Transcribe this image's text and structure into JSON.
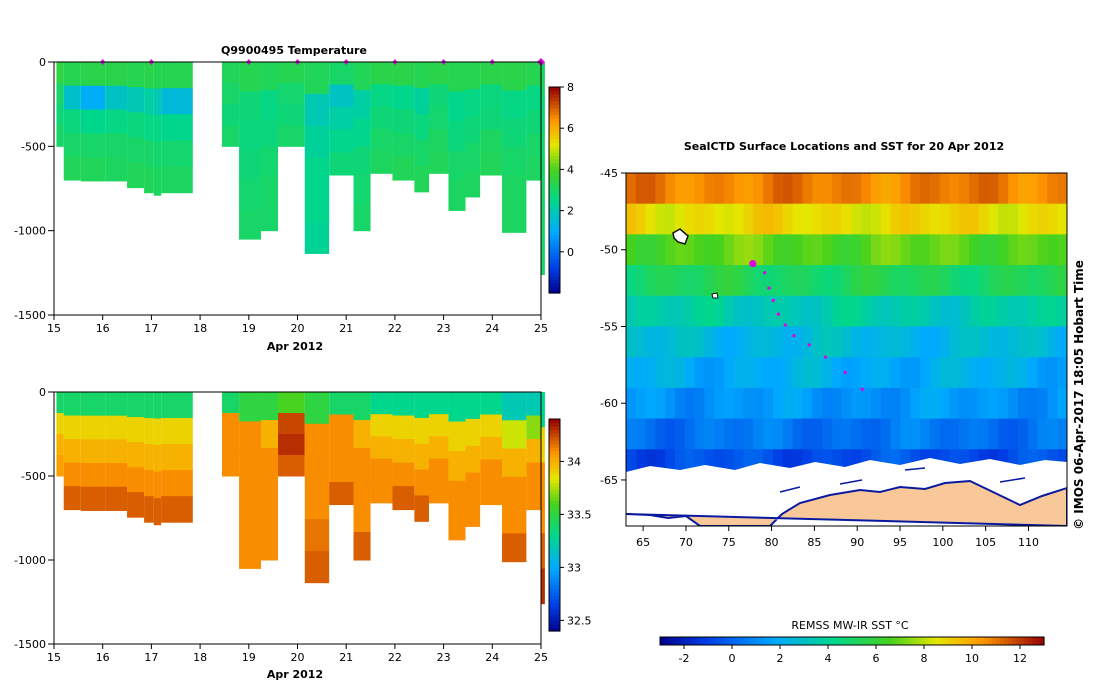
{
  "chart_data": [
    {
      "type": "heatmap",
      "title": "Q9900495  Temperature",
      "xlabel": "Apr 2012",
      "ylabel": "",
      "xlim": [
        15,
        25
      ],
      "ylim": [
        -1500,
        0
      ],
      "x_ticks": [
        "15",
        "16",
        "17",
        "18",
        "19",
        "20",
        "21",
        "22",
        "23",
        "24",
        "25"
      ],
      "y_ticks": [
        "0",
        "-500",
        "-1000",
        "-1500"
      ],
      "colorbar": {
        "min": -2,
        "max": 8,
        "ticks": [
          "0",
          "2",
          "4",
          "6",
          "8"
        ]
      },
      "surface_markers": [
        16,
        17,
        19,
        20,
        21,
        22,
        23,
        24,
        25
      ],
      "profiles": [
        {
          "x0": 15.05,
          "x1": 15.2,
          "depth": 500,
          "values": [
            3.5,
            3.0,
            2.8,
            3.0
          ]
        },
        {
          "x0": 15.2,
          "x1": 15.55,
          "depth": 700,
          "values": [
            3.3,
            1.7,
            2.7,
            3.0,
            3.2
          ]
        },
        {
          "x0": 15.55,
          "x1": 16.05,
          "depth": 705,
          "values": [
            3.4,
            1.1,
            2.5,
            3.0,
            3.2
          ]
        },
        {
          "x0": 16.05,
          "x1": 16.5,
          "depth": 705,
          "values": [
            3.4,
            1.8,
            2.6,
            3.0,
            3.1
          ]
        },
        {
          "x0": 16.5,
          "x1": 16.85,
          "depth": 745,
          "values": [
            3.3,
            2.0,
            2.7,
            3.0,
            3.2
          ]
        },
        {
          "x0": 16.85,
          "x1": 17.05,
          "depth": 775,
          "values": [
            3.4,
            2.2,
            2.6,
            3.0,
            3.2
          ]
        },
        {
          "x0": 17.05,
          "x1": 17.2,
          "depth": 790,
          "values": [
            3.3,
            2.0,
            2.6,
            2.9,
            3.1
          ]
        },
        {
          "x0": 17.2,
          "x1": 17.85,
          "depth": 775,
          "values": [
            3.3,
            1.5,
            2.5,
            2.9,
            3.1
          ]
        },
        {
          "x0": 18.45,
          "x1": 18.8,
          "depth": 500,
          "values": [
            3.2,
            3.0,
            2.8,
            3.0
          ]
        },
        {
          "x0": 18.8,
          "x1": 19.25,
          "depth": 1050,
          "values": [
            3.3,
            2.8,
            2.7,
            2.8,
            2.9,
            3.0
          ]
        },
        {
          "x0": 19.25,
          "x1": 19.6,
          "depth": 1000,
          "values": [
            3.2,
            2.6,
            2.7,
            2.9,
            3.0,
            3.0
          ]
        },
        {
          "x0": 19.6,
          "x1": 20.15,
          "depth": 500,
          "values": [
            3.3,
            2.9,
            2.8,
            3.0
          ]
        },
        {
          "x0": 20.15,
          "x1": 20.65,
          "depth": 1135,
          "values": [
            3.2,
            2.0,
            2.3,
            2.5,
            2.5,
            2.4
          ]
        },
        {
          "x0": 20.65,
          "x1": 21.15,
          "depth": 670,
          "values": [
            3.0,
            1.8,
            2.2,
            2.5,
            2.8
          ]
        },
        {
          "x0": 21.15,
          "x1": 21.5,
          "depth": 1000,
          "values": [
            3.2,
            2.2,
            2.5,
            2.8,
            2.9,
            3.0
          ]
        },
        {
          "x0": 21.5,
          "x1": 21.95,
          "depth": 660,
          "values": [
            3.4,
            2.6,
            2.8,
            3.0,
            3.1
          ]
        },
        {
          "x0": 21.95,
          "x1": 22.4,
          "depth": 700,
          "values": [
            3.4,
            2.5,
            2.8,
            3.0,
            3.2
          ]
        },
        {
          "x0": 22.4,
          "x1": 22.7,
          "depth": 770,
          "values": [
            3.3,
            2.3,
            2.7,
            3.0,
            3.2
          ]
        },
        {
          "x0": 22.7,
          "x1": 23.1,
          "depth": 660,
          "values": [
            3.4,
            2.8,
            2.9,
            3.1,
            3.2
          ]
        },
        {
          "x0": 23.1,
          "x1": 23.45,
          "depth": 880,
          "values": [
            3.3,
            2.5,
            2.7,
            3.0,
            3.1
          ]
        },
        {
          "x0": 23.45,
          "x1": 23.75,
          "depth": 800,
          "values": [
            3.3,
            2.6,
            2.8,
            3.0,
            3.1
          ]
        },
        {
          "x0": 23.75,
          "x1": 24.2,
          "depth": 670,
          "values": [
            3.4,
            2.7,
            2.8,
            3.1,
            3.2
          ]
        },
        {
          "x0": 24.2,
          "x1": 24.7,
          "depth": 1010,
          "values": [
            3.4,
            2.6,
            2.8,
            3.0,
            3.1,
            3.1
          ]
        },
        {
          "x0": 24.7,
          "x1": 25.0,
          "depth": 700,
          "values": [
            3.3,
            2.6,
            2.8,
            3.0,
            3.1
          ]
        },
        {
          "x0": 25.0,
          "x1": 25.08,
          "depth": 1260,
          "values": [
            3.1,
            2.8,
            2.9,
            3.0,
            3.0,
            3.0
          ]
        }
      ]
    },
    {
      "type": "heatmap",
      "title": "",
      "xlabel": "Apr 2012",
      "ylabel": "",
      "xlim": [
        15,
        25
      ],
      "ylim": [
        -1500,
        0
      ],
      "x_ticks": [
        "15",
        "16",
        "17",
        "18",
        "19",
        "20",
        "21",
        "22",
        "23",
        "24",
        "25"
      ],
      "y_ticks": [
        "0",
        "-500",
        "-1000",
        "-1500"
      ],
      "colorbar": {
        "min": 32.4,
        "max": 34.4,
        "ticks": [
          "32.5",
          "33",
          "33.5",
          "34"
        ]
      },
      "profiles": [
        {
          "x0": 15.05,
          "x1": 15.2,
          "depth": 500,
          "values": [
            33.4,
            33.9,
            34.0,
            34.05
          ]
        },
        {
          "x0": 15.2,
          "x1": 15.55,
          "depth": 700,
          "values": [
            33.4,
            33.9,
            34.0,
            34.1,
            34.2
          ]
        },
        {
          "x0": 15.55,
          "x1": 16.05,
          "depth": 705,
          "values": [
            33.4,
            33.9,
            34.0,
            34.1,
            34.2
          ]
        },
        {
          "x0": 16.05,
          "x1": 16.5,
          "depth": 705,
          "values": [
            33.4,
            33.9,
            34.0,
            34.1,
            34.2
          ]
        },
        {
          "x0": 16.5,
          "x1": 16.85,
          "depth": 745,
          "values": [
            33.4,
            33.9,
            34.0,
            34.1,
            34.2
          ]
        },
        {
          "x0": 16.85,
          "x1": 17.05,
          "depth": 775,
          "values": [
            33.4,
            33.9,
            34.0,
            34.1,
            34.2
          ]
        },
        {
          "x0": 17.05,
          "x1": 17.2,
          "depth": 790,
          "values": [
            33.4,
            33.9,
            34.0,
            34.1,
            34.2
          ]
        },
        {
          "x0": 17.2,
          "x1": 17.85,
          "depth": 775,
          "values": [
            33.4,
            33.9,
            34.0,
            34.1,
            34.2
          ]
        },
        {
          "x0": 18.45,
          "x1": 18.8,
          "depth": 500,
          "values": [
            33.4,
            34.1,
            34.1,
            34.1
          ]
        },
        {
          "x0": 18.8,
          "x1": 19.25,
          "depth": 1050,
          "values": [
            33.5,
            34.1,
            34.1,
            34.1,
            34.1,
            34.1
          ]
        },
        {
          "x0": 19.25,
          "x1": 19.6,
          "depth": 1000,
          "values": [
            33.5,
            34.0,
            34.1,
            34.1,
            34.1,
            34.1
          ]
        },
        {
          "x0": 19.6,
          "x1": 20.15,
          "depth": 500,
          "values": [
            33.6,
            34.25,
            34.3,
            34.2
          ]
        },
        {
          "x0": 20.15,
          "x1": 20.65,
          "depth": 1135,
          "values": [
            33.5,
            34.1,
            34.1,
            34.1,
            34.15,
            34.2
          ]
        },
        {
          "x0": 20.65,
          "x1": 21.15,
          "depth": 670,
          "values": [
            33.4,
            34.1,
            34.1,
            34.1,
            34.2
          ]
        },
        {
          "x0": 21.15,
          "x1": 21.5,
          "depth": 1000,
          "values": [
            33.4,
            34.0,
            34.1,
            34.1,
            34.1,
            34.2
          ]
        },
        {
          "x0": 21.5,
          "x1": 21.95,
          "depth": 660,
          "values": [
            33.3,
            33.9,
            34.0,
            34.1,
            34.1
          ]
        },
        {
          "x0": 21.95,
          "x1": 22.4,
          "depth": 700,
          "values": [
            33.3,
            33.9,
            34.0,
            34.1,
            34.2
          ]
        },
        {
          "x0": 22.4,
          "x1": 22.7,
          "depth": 770,
          "values": [
            33.3,
            33.9,
            34.0,
            34.1,
            34.2
          ]
        },
        {
          "x0": 22.7,
          "x1": 23.1,
          "depth": 660,
          "values": [
            33.3,
            33.9,
            34.0,
            34.1,
            34.1
          ]
        },
        {
          "x0": 23.1,
          "x1": 23.45,
          "depth": 880,
          "values": [
            33.3,
            33.9,
            34.0,
            34.1,
            34.1
          ]
        },
        {
          "x0": 23.45,
          "x1": 23.75,
          "depth": 800,
          "values": [
            33.3,
            33.9,
            34.0,
            34.1,
            34.1
          ]
        },
        {
          "x0": 23.75,
          "x1": 24.2,
          "depth": 670,
          "values": [
            33.3,
            33.9,
            34.0,
            34.1,
            34.1
          ]
        },
        {
          "x0": 24.2,
          "x1": 24.7,
          "depth": 1010,
          "values": [
            33.2,
            33.8,
            34.0,
            34.1,
            34.1,
            34.2
          ]
        },
        {
          "x0": 24.7,
          "x1": 25.0,
          "depth": 700,
          "values": [
            33.2,
            33.7,
            34.0,
            34.1,
            34.1
          ]
        },
        {
          "x0": 25.0,
          "x1": 25.08,
          "depth": 1260,
          "values": [
            33.3,
            33.9,
            34.1,
            34.1,
            34.2,
            34.3
          ]
        }
      ]
    },
    {
      "type": "map",
      "title": "SealCTD Surface Locations and SST for 20 Apr 2012",
      "xlim": [
        63,
        114.5
      ],
      "ylim": [
        -68,
        -45
      ],
      "x_ticks": [
        "65",
        "70",
        "75",
        "80",
        "85",
        "90",
        "95",
        "100",
        "105",
        "110"
      ],
      "y_ticks": [
        "-45",
        "-50",
        "-55",
        "-60",
        "-65"
      ],
      "sst_range": [
        -3,
        13
      ],
      "sst_bands": [
        {
          "lat": -45.0,
          "sst": 10.8
        },
        {
          "lat": -47.0,
          "sst": 8.8
        },
        {
          "lat": -49.0,
          "sst": 6.8
        },
        {
          "lat": -51.0,
          "sst": 5.2
        },
        {
          "lat": -53.0,
          "sst": 3.5
        },
        {
          "lat": -55.0,
          "sst": 2.5
        },
        {
          "lat": -57.0,
          "sst": 2.0
        },
        {
          "lat": -59.0,
          "sst": 1.3
        },
        {
          "lat": -61.0,
          "sst": 0.4
        },
        {
          "lat": -63.0,
          "sst": -0.6
        },
        {
          "lat": -64.6,
          "sst": -1.6
        }
      ],
      "track": [
        {
          "lon": 78.0,
          "lat": -51.0
        },
        {
          "lon": 79.2,
          "lat": -51.5
        },
        {
          "lon": 79.7,
          "lat": -52.5
        },
        {
          "lon": 80.2,
          "lat": -53.3
        },
        {
          "lon": 80.8,
          "lat": -54.2
        },
        {
          "lon": 81.6,
          "lat": -54.9
        },
        {
          "lon": 82.6,
          "lat": -55.6
        },
        {
          "lon": 84.4,
          "lat": -56.2
        },
        {
          "lon": 86.3,
          "lat": -57.0
        },
        {
          "lon": 88.6,
          "lat": -58.0
        },
        {
          "lon": 90.6,
          "lat": -59.1
        }
      ],
      "latest_position": {
        "lon": 77.8,
        "lat": -50.9
      },
      "side_label": "© IMOS 06-Apr-2017 18:05 Hobart Time"
    },
    {
      "type": "colorbar",
      "title": "REMSS MW-IR SST °C",
      "range": [
        -3,
        13
      ],
      "ticks": [
        "-2",
        "0",
        "2",
        "4",
        "6",
        "8",
        "10",
        "12"
      ]
    }
  ],
  "colors": {
    "marker": "#e000e0",
    "land": "#f8c898",
    "ice": "#ffffff",
    "coast": "#0a1aa0"
  }
}
